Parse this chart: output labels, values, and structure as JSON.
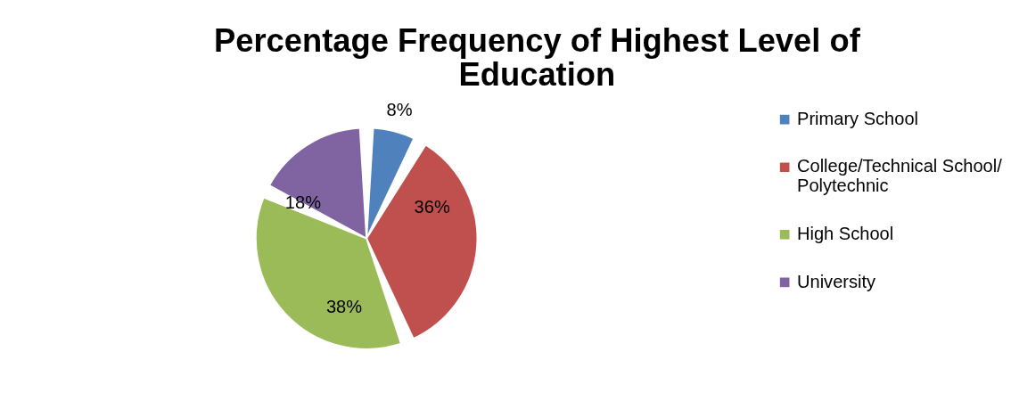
{
  "chart_data": {
    "type": "pie",
    "title": "Percentage Frequency of Highest Level of Education",
    "categories": [
      "Primary School",
      "College/Technical School/ Polytechnic",
      "High School",
      "University"
    ],
    "values": [
      8,
      36,
      38,
      18
    ],
    "colors": [
      "#4f81bd",
      "#c0504d",
      "#9bbb59",
      "#8064a2"
    ],
    "value_labels": [
      "8%",
      "36%",
      "38%",
      "18%"
    ],
    "legend": "right"
  }
}
